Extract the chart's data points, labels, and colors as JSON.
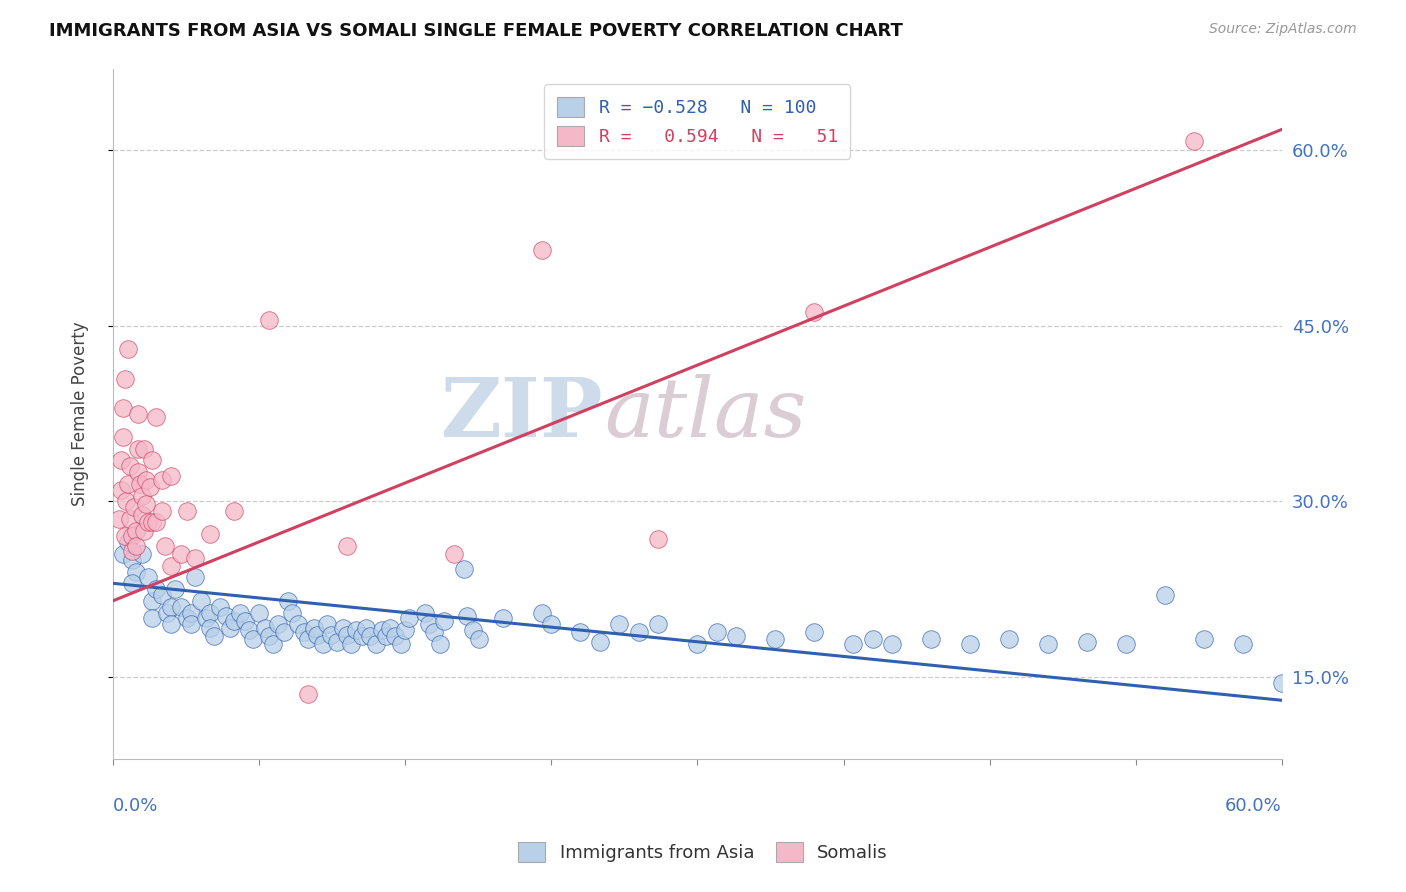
{
  "title": "IMMIGRANTS FROM ASIA VS SOMALI SINGLE FEMALE POVERTY CORRELATION CHART",
  "source": "Source: ZipAtlas.com",
  "ylabel": "Single Female Poverty",
  "right_yticks": [
    0.15,
    0.3,
    0.45,
    0.6
  ],
  "right_yticklabels": [
    "15.0%",
    "30.0%",
    "45.0%",
    "60.0%"
  ],
  "xlim": [
    0.0,
    0.6
  ],
  "ylim": [
    0.08,
    0.67
  ],
  "blue_color": "#b8d0e8",
  "pink_color": "#f5b8c8",
  "blue_line_color": "#3060b0",
  "pink_line_color": "#d04060",
  "watermark_zip": "ZIP",
  "watermark_atlas": "atlas",
  "blue_scatter": [
    [
      0.005,
      0.255
    ],
    [
      0.008,
      0.265
    ],
    [
      0.01,
      0.25
    ],
    [
      0.012,
      0.24
    ],
    [
      0.01,
      0.23
    ],
    [
      0.015,
      0.255
    ],
    [
      0.018,
      0.235
    ],
    [
      0.02,
      0.215
    ],
    [
      0.02,
      0.2
    ],
    [
      0.022,
      0.225
    ],
    [
      0.025,
      0.22
    ],
    [
      0.028,
      0.205
    ],
    [
      0.03,
      0.21
    ],
    [
      0.03,
      0.195
    ],
    [
      0.032,
      0.225
    ],
    [
      0.035,
      0.21
    ],
    [
      0.038,
      0.2
    ],
    [
      0.04,
      0.205
    ],
    [
      0.04,
      0.195
    ],
    [
      0.042,
      0.235
    ],
    [
      0.045,
      0.215
    ],
    [
      0.048,
      0.2
    ],
    [
      0.05,
      0.205
    ],
    [
      0.05,
      0.192
    ],
    [
      0.052,
      0.185
    ],
    [
      0.055,
      0.21
    ],
    [
      0.058,
      0.202
    ],
    [
      0.06,
      0.192
    ],
    [
      0.062,
      0.198
    ],
    [
      0.065,
      0.205
    ],
    [
      0.068,
      0.198
    ],
    [
      0.07,
      0.19
    ],
    [
      0.072,
      0.182
    ],
    [
      0.075,
      0.205
    ],
    [
      0.078,
      0.192
    ],
    [
      0.08,
      0.185
    ],
    [
      0.082,
      0.178
    ],
    [
      0.085,
      0.195
    ],
    [
      0.088,
      0.188
    ],
    [
      0.09,
      0.215
    ],
    [
      0.092,
      0.205
    ],
    [
      0.095,
      0.195
    ],
    [
      0.098,
      0.188
    ],
    [
      0.1,
      0.182
    ],
    [
      0.103,
      0.192
    ],
    [
      0.105,
      0.186
    ],
    [
      0.108,
      0.178
    ],
    [
      0.11,
      0.195
    ],
    [
      0.112,
      0.186
    ],
    [
      0.115,
      0.18
    ],
    [
      0.118,
      0.192
    ],
    [
      0.12,
      0.186
    ],
    [
      0.122,
      0.178
    ],
    [
      0.125,
      0.19
    ],
    [
      0.128,
      0.185
    ],
    [
      0.13,
      0.192
    ],
    [
      0.132,
      0.185
    ],
    [
      0.135,
      0.178
    ],
    [
      0.138,
      0.19
    ],
    [
      0.14,
      0.185
    ],
    [
      0.142,
      0.192
    ],
    [
      0.145,
      0.185
    ],
    [
      0.148,
      0.178
    ],
    [
      0.15,
      0.19
    ],
    [
      0.152,
      0.2
    ],
    [
      0.16,
      0.205
    ],
    [
      0.162,
      0.195
    ],
    [
      0.165,
      0.188
    ],
    [
      0.168,
      0.178
    ],
    [
      0.17,
      0.198
    ],
    [
      0.18,
      0.242
    ],
    [
      0.182,
      0.202
    ],
    [
      0.185,
      0.19
    ],
    [
      0.188,
      0.182
    ],
    [
      0.2,
      0.2
    ],
    [
      0.22,
      0.205
    ],
    [
      0.225,
      0.195
    ],
    [
      0.24,
      0.188
    ],
    [
      0.25,
      0.18
    ],
    [
      0.26,
      0.195
    ],
    [
      0.27,
      0.188
    ],
    [
      0.28,
      0.195
    ],
    [
      0.3,
      0.178
    ],
    [
      0.31,
      0.188
    ],
    [
      0.32,
      0.185
    ],
    [
      0.34,
      0.182
    ],
    [
      0.36,
      0.188
    ],
    [
      0.38,
      0.178
    ],
    [
      0.39,
      0.182
    ],
    [
      0.4,
      0.178
    ],
    [
      0.42,
      0.182
    ],
    [
      0.44,
      0.178
    ],
    [
      0.46,
      0.182
    ],
    [
      0.48,
      0.178
    ],
    [
      0.5,
      0.18
    ],
    [
      0.52,
      0.178
    ],
    [
      0.54,
      0.22
    ],
    [
      0.56,
      0.182
    ],
    [
      0.58,
      0.178
    ],
    [
      0.6,
      0.145
    ]
  ],
  "pink_scatter": [
    [
      0.003,
      0.285
    ],
    [
      0.004,
      0.31
    ],
    [
      0.004,
      0.335
    ],
    [
      0.005,
      0.355
    ],
    [
      0.005,
      0.38
    ],
    [
      0.006,
      0.405
    ],
    [
      0.006,
      0.27
    ],
    [
      0.007,
      0.3
    ],
    [
      0.008,
      0.43
    ],
    [
      0.008,
      0.315
    ],
    [
      0.009,
      0.33
    ],
    [
      0.009,
      0.285
    ],
    [
      0.01,
      0.27
    ],
    [
      0.01,
      0.258
    ],
    [
      0.011,
      0.295
    ],
    [
      0.012,
      0.275
    ],
    [
      0.012,
      0.262
    ],
    [
      0.013,
      0.325
    ],
    [
      0.013,
      0.345
    ],
    [
      0.013,
      0.375
    ],
    [
      0.014,
      0.315
    ],
    [
      0.015,
      0.305
    ],
    [
      0.015,
      0.288
    ],
    [
      0.016,
      0.275
    ],
    [
      0.016,
      0.345
    ],
    [
      0.017,
      0.298
    ],
    [
      0.017,
      0.318
    ],
    [
      0.018,
      0.282
    ],
    [
      0.019,
      0.312
    ],
    [
      0.02,
      0.335
    ],
    [
      0.02,
      0.282
    ],
    [
      0.022,
      0.282
    ],
    [
      0.022,
      0.372
    ],
    [
      0.025,
      0.292
    ],
    [
      0.025,
      0.318
    ],
    [
      0.027,
      0.262
    ],
    [
      0.03,
      0.245
    ],
    [
      0.03,
      0.322
    ],
    [
      0.035,
      0.255
    ],
    [
      0.038,
      0.292
    ],
    [
      0.042,
      0.252
    ],
    [
      0.05,
      0.272
    ],
    [
      0.062,
      0.292
    ],
    [
      0.08,
      0.455
    ],
    [
      0.1,
      0.135
    ],
    [
      0.12,
      0.262
    ],
    [
      0.175,
      0.255
    ],
    [
      0.22,
      0.515
    ],
    [
      0.28,
      0.268
    ],
    [
      0.36,
      0.462
    ],
    [
      0.555,
      0.608
    ]
  ],
  "blue_line_x": [
    0.0,
    0.6
  ],
  "blue_line_y": [
    0.23,
    0.13
  ],
  "pink_line_x": [
    0.0,
    0.6
  ],
  "pink_line_y": [
    0.215,
    0.618
  ]
}
